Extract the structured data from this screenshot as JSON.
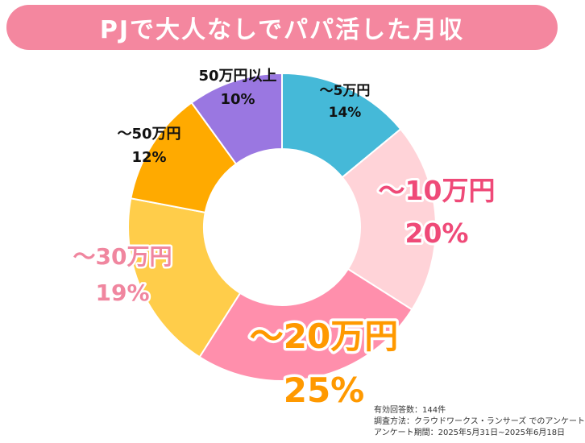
{
  "title": "PJで大人なしでパパ活した月収",
  "colors": {
    "title_bg": "#f4879f",
    "slices": [
      "#45b9d8",
      "#ffd3d8",
      "#ff8fac",
      "#ffcd4a",
      "#ffaa00",
      "#9a77e1"
    ],
    "labels": [
      "#111111",
      "#ef4a78",
      "#ff9900",
      "#f0869f",
      "#111111",
      "#111111"
    ]
  },
  "chart_data": {
    "type": "pie",
    "donut": true,
    "categories": [
      "〜5万円",
      "〜10万円",
      "〜20万円",
      "〜30万円",
      "〜50万円",
      "50万円以上"
    ],
    "values": [
      14,
      20,
      25,
      19,
      12,
      10
    ],
    "value_labels": [
      "14%",
      "20%",
      "25%",
      "19%",
      "12%",
      "10%"
    ]
  },
  "footnote": {
    "line1": "有効回答数：144件",
    "line2": "調査方法：クラウドワークス・ランサーズ でのアンケート",
    "line3": "アンケート期間：2025年5月31日~2025年6月18日"
  }
}
